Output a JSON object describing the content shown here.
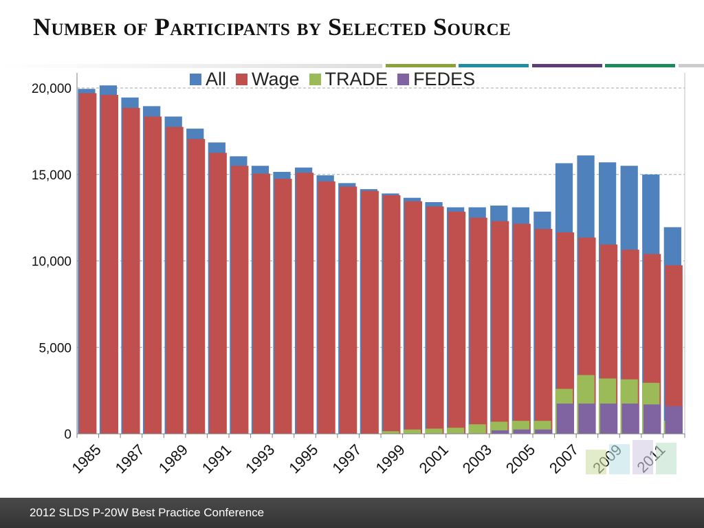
{
  "slide": {
    "title": "Number of Participants by Selected Source",
    "footer": "2012 SLDS P-20W Best Practice Conference",
    "deco_colors": [
      "#8aa23a",
      "#1f8ea3",
      "#5c3d7a",
      "#1e8a5a",
      "#cccccc"
    ]
  },
  "chart_data": {
    "type": "bar",
    "title": "",
    "xlabel": "",
    "ylabel": "",
    "ylim": [
      0,
      20000
    ],
    "yticks": [
      0,
      5000,
      10000,
      15000,
      20000
    ],
    "ytick_labels": [
      "0",
      "5,000",
      "10,000",
      "15,000",
      "20,000"
    ],
    "grid": true,
    "legend_position": "top",
    "categories": [
      1985,
      1986,
      1987,
      1988,
      1989,
      1990,
      1991,
      1992,
      1993,
      1994,
      1995,
      1996,
      1997,
      1998,
      1999,
      2000,
      2001,
      2002,
      2003,
      2004,
      2005,
      2006,
      2007,
      2008,
      2009,
      2010,
      2011,
      2012
    ],
    "xtick_labels": [
      "1985",
      "1987",
      "1989",
      "1991",
      "1993",
      "1995",
      "1997",
      "1999",
      "2001",
      "2003",
      "2005",
      "2007",
      "2009",
      "2011"
    ],
    "series": [
      {
        "name": "All",
        "color": "#4f81bd",
        "values": [
          19950,
          20150,
          19450,
          18950,
          18350,
          17650,
          16850,
          16050,
          15500,
          15150,
          15400,
          14950,
          14500,
          14150,
          13900,
          13650,
          13400,
          13100,
          13100,
          13200,
          13100,
          12850,
          15650,
          16100,
          15700,
          15500,
          15000,
          11950
        ]
      },
      {
        "name": "Wage",
        "color": "#c0504d",
        "values": [
          19700,
          19600,
          18850,
          18350,
          17750,
          17050,
          16250,
          15500,
          15050,
          14750,
          15100,
          14600,
          14300,
          14050,
          13800,
          13450,
          13150,
          12850,
          12500,
          12300,
          12150,
          11850,
          11650,
          11350,
          10950,
          10650,
          10400,
          9750
        ]
      },
      {
        "name": "TRADE",
        "color": "#9bbb59",
        "values": [
          0,
          0,
          0,
          0,
          0,
          0,
          0,
          0,
          0,
          0,
          0,
          0,
          0,
          0,
          150,
          250,
          300,
          350,
          550,
          700,
          750,
          750,
          2600,
          3400,
          3200,
          3150,
          2950,
          750
        ]
      },
      {
        "name": "FEDES",
        "color": "#8064a2",
        "values": [
          0,
          0,
          0,
          0,
          0,
          0,
          0,
          0,
          0,
          0,
          0,
          0,
          0,
          0,
          0,
          0,
          0,
          0,
          0,
          200,
          250,
          250,
          1750,
          1750,
          1750,
          1750,
          1700,
          1600
        ]
      }
    ]
  }
}
